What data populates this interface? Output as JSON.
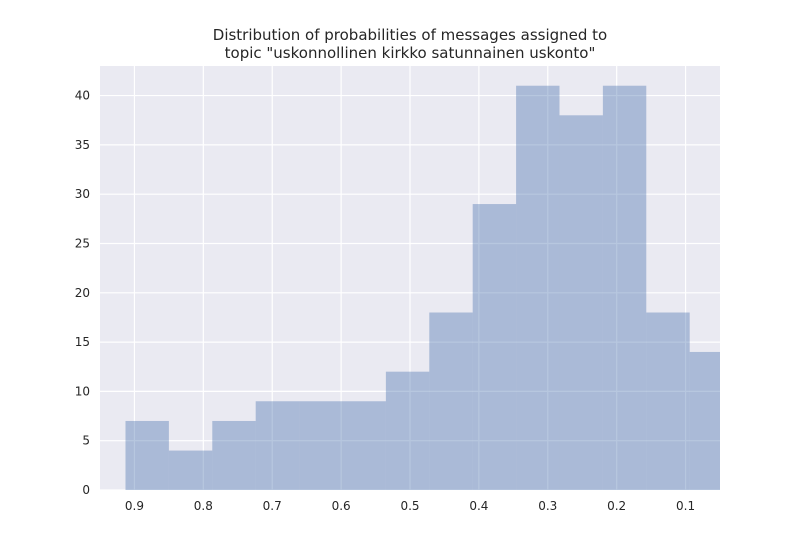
{
  "chart_data": {
    "type": "bar",
    "title": "Distribution of probabilities of messages assigned to\ntopic \"uskonnollinen kirkko satunnainen uskonto\"",
    "xlabel": "",
    "ylabel": "",
    "x_reversed": true,
    "xlim": [
      0.95,
      0.05
    ],
    "ylim": [
      0,
      43
    ],
    "x_ticks": [
      0.9,
      0.8,
      0.7,
      0.6,
      0.5,
      0.4,
      0.3,
      0.2,
      0.1
    ],
    "x_tick_labels": [
      "0.9",
      "0.8",
      "0.7",
      "0.6",
      "0.5",
      "0.4",
      "0.3",
      "0.2",
      "0.1"
    ],
    "y_ticks": [
      0,
      5,
      10,
      15,
      20,
      25,
      30,
      35,
      40
    ],
    "y_tick_labels": [
      "0",
      "5",
      "10",
      "15",
      "20",
      "25",
      "30",
      "35",
      "40"
    ],
    "bin_edges": [
      0.913,
      0.85,
      0.787,
      0.724,
      0.661,
      0.598,
      0.535,
      0.472,
      0.409,
      0.346,
      0.283,
      0.22,
      0.157,
      0.094,
      0.05
    ],
    "counts": [
      7,
      4,
      7,
      9,
      9,
      9,
      12,
      18,
      29,
      41,
      38,
      41,
      18,
      14
    ],
    "grid": true,
    "colors": {
      "bar": "#4c72b0",
      "background": "#eaeaf2",
      "grid": "#ffffff"
    }
  }
}
